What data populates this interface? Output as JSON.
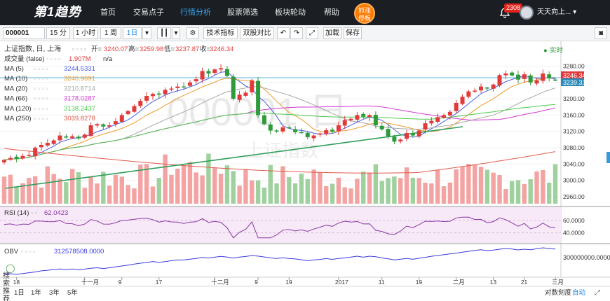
{
  "nav": {
    "logo": "第1趋势",
    "items": [
      "首页",
      "交易点子",
      "行情分析",
      "股票筛选",
      "板块轮动",
      "帮助"
    ],
    "active_index": 2,
    "hot_button": [
      "抓涨",
      "停板"
    ],
    "badge": "2308",
    "user": "天天向上..."
  },
  "toolbar": {
    "symbol": "000001",
    "periods": [
      "15 分",
      "1 小时",
      "1 周",
      "1日"
    ],
    "active_period": "1日",
    "buttons": [
      "技术指标",
      "双股对比",
      "加载",
      "保存"
    ]
  },
  "bottom": {
    "ranges": [
      "1日",
      "1年",
      "3年",
      "5年"
    ],
    "right": [
      "对数刻度",
      "自动"
    ],
    "search_side": "搜索推荐"
  },
  "colors": {
    "up": "#e03a3a",
    "down": "#2e9a3a",
    "up_vol": "#f4a3a3",
    "down_vol": "#9fd19f",
    "ma5": "#4a5ee0",
    "ma10": "#f09a2a",
    "ma20": "#a8a8a8",
    "ma66": "#d23ad2",
    "ma120": "#4cc94c",
    "ma250": "#e05a4a",
    "rsi": "#8a3aa8",
    "obv": "#3a3ae0"
  },
  "chart_data": {
    "type": "candlestick",
    "title": "上证指数, 日, 上海",
    "watermark": "000001 日",
    "watermark_sub": "上证指数",
    "status": "实时",
    "ohlc_summary": {
      "open_label": "开=",
      "open": "3240.07",
      "high_label": "高=",
      "high": "3259.98",
      "low_label": "低=",
      "low": "3237.87",
      "close_label": "收=",
      "close": "3246.34"
    },
    "volume_label": "成交量 (false)",
    "volume_value": "1.907M",
    "volume_na": "n/a",
    "ma": [
      {
        "name": "MA (5)",
        "value": "3244.5331",
        "color_key": "ma5"
      },
      {
        "name": "MA (10)",
        "value": "3240.9691",
        "color_key": "ma10"
      },
      {
        "name": "MA (20)",
        "value": "3210.8714",
        "color_key": "ma20"
      },
      {
        "name": "MA (66)",
        "value": "3178.0287",
        "color_key": "ma66"
      },
      {
        "name": "MA (120)",
        "value": "3138.2437",
        "color_key": "ma120"
      },
      {
        "name": "MA (250)",
        "value": "3039.8278",
        "color_key": "ma250"
      }
    ],
    "ylim": [
      2960,
      3310
    ],
    "y_ticks": [
      "3280.00",
      "3240.00",
      "3200.00",
      "3160.00",
      "3120.00",
      "3080.00",
      "3040.00",
      "3000.00",
      "2960.00"
    ],
    "y_tick_values": [
      3280,
      3240,
      3200,
      3160,
      3120,
      3080,
      3040,
      3000,
      2960
    ],
    "price_tags": [
      "3246.34",
      "3239.31"
    ],
    "x_labels": [
      "18",
      "十一月",
      "9",
      "17",
      "十二月",
      "9",
      "19",
      "2017",
      "11",
      "19",
      "二月",
      "13",
      "21",
      "三月"
    ],
    "x_label_index": [
      2,
      13,
      19,
      25,
      34,
      41,
      46,
      54,
      61,
      67,
      73,
      79,
      84,
      89
    ],
    "closes": [
      3050,
      3055,
      3053,
      3060,
      3062,
      3080,
      3087,
      3092,
      3098,
      3110,
      3105,
      3108,
      3103,
      3112,
      3135,
      3138,
      3132,
      3135,
      3145,
      3160,
      3170,
      3182,
      3195,
      3207,
      3212,
      3210,
      3222,
      3225,
      3230,
      3230,
      3240,
      3248,
      3268,
      3262,
      3272,
      3275,
      3256,
      3200,
      3210,
      3215,
      3245,
      3160,
      3138,
      3122,
      3120,
      3130,
      3128,
      3118,
      3117,
      3106,
      3110,
      3115,
      3123,
      3120,
      3135,
      3148,
      3151,
      3160,
      3156,
      3160,
      3135,
      3125,
      3108,
      3095,
      3100,
      3116,
      3110,
      3122,
      3140,
      3146,
      3155,
      3160,
      3168,
      3190,
      3205,
      3218,
      3220,
      3230,
      3225,
      3235,
      3258,
      3262,
      3257,
      3247,
      3260,
      3240,
      3245,
      3262,
      3250,
      3246
    ],
    "rsi": {
      "name": "RSI (14)",
      "value": "62.0423",
      "ticks": [
        "60.0000",
        "40.0000"
      ],
      "tick_values": [
        60,
        40
      ],
      "ylim": [
        25,
        80
      ]
    },
    "obv": {
      "name": "OBV",
      "value": "312578508.0000",
      "tick": "300000000.0000"
    }
  }
}
